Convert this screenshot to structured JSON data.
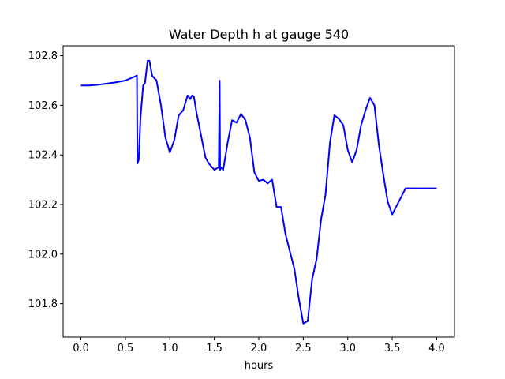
{
  "chart_data": {
    "type": "line",
    "title": "Water Depth h at gauge 540",
    "xlabel": "hours",
    "ylabel": "",
    "xlim": [
      -0.2,
      4.2
    ],
    "ylim": [
      101.665,
      102.84
    ],
    "xticks": [
      0.0,
      0.5,
      1.0,
      1.5,
      2.0,
      2.5,
      3.0,
      3.5,
      4.0
    ],
    "xtick_labels": [
      "0.0",
      "0.5",
      "1.0",
      "1.5",
      "2.0",
      "2.5",
      "3.0",
      "3.5",
      "4.0"
    ],
    "yticks": [
      101.8,
      102.0,
      102.2,
      102.4,
      102.6,
      102.8
    ],
    "ytick_labels": [
      "101.8",
      "102.0",
      "102.2",
      "102.4",
      "102.6",
      "102.8"
    ],
    "grid": false,
    "line_color": "#0000ff",
    "series": [
      {
        "name": "",
        "x": [
          0.0,
          0.1,
          0.2,
          0.3,
          0.4,
          0.5,
          0.6,
          0.63,
          0.635,
          0.65,
          0.67,
          0.7,
          0.72,
          0.75,
          0.77,
          0.8,
          0.85,
          0.9,
          0.95,
          1.0,
          1.05,
          1.1,
          1.15,
          1.2,
          1.23,
          1.25,
          1.27,
          1.3,
          1.35,
          1.4,
          1.43,
          1.45,
          1.5,
          1.55,
          1.56,
          1.565,
          1.575,
          1.6,
          1.65,
          1.7,
          1.75,
          1.8,
          1.85,
          1.9,
          1.95,
          2.0,
          2.05,
          2.1,
          2.15,
          2.2,
          2.25,
          2.3,
          2.35,
          2.4,
          2.45,
          2.5,
          2.55,
          2.6,
          2.65,
          2.7,
          2.75,
          2.8,
          2.85,
          2.9,
          2.95,
          3.0,
          3.05,
          3.1,
          3.15,
          3.2,
          3.25,
          3.3,
          3.35,
          3.4,
          3.45,
          3.5,
          3.55,
          3.6,
          3.65,
          3.7,
          3.75,
          3.8,
          3.85,
          3.9,
          3.95,
          4.0
        ],
        "y": [
          102.68,
          102.68,
          102.683,
          102.688,
          102.693,
          102.7,
          102.715,
          102.72,
          102.365,
          102.38,
          102.55,
          102.68,
          102.69,
          102.78,
          102.78,
          102.72,
          102.7,
          102.6,
          102.47,
          102.41,
          102.46,
          102.56,
          102.58,
          102.64,
          102.625,
          102.64,
          102.635,
          102.57,
          102.48,
          102.39,
          102.37,
          102.36,
          102.34,
          102.35,
          102.7,
          102.34,
          102.35,
          102.34,
          102.45,
          102.54,
          102.53,
          102.565,
          102.54,
          102.47,
          102.33,
          102.295,
          102.3,
          102.285,
          102.3,
          102.19,
          102.19,
          102.08,
          102.01,
          101.94,
          101.82,
          101.72,
          101.73,
          101.9,
          101.98,
          102.14,
          102.24,
          102.45,
          102.56,
          102.545,
          102.52,
          102.42,
          102.37,
          102.42,
          102.52,
          102.58,
          102.63,
          102.6,
          102.44,
          102.32,
          102.21,
          102.16,
          102.195,
          102.23,
          102.265,
          102.265,
          102.265,
          102.265,
          102.265,
          102.265,
          102.265,
          102.265
        ]
      }
    ]
  }
}
